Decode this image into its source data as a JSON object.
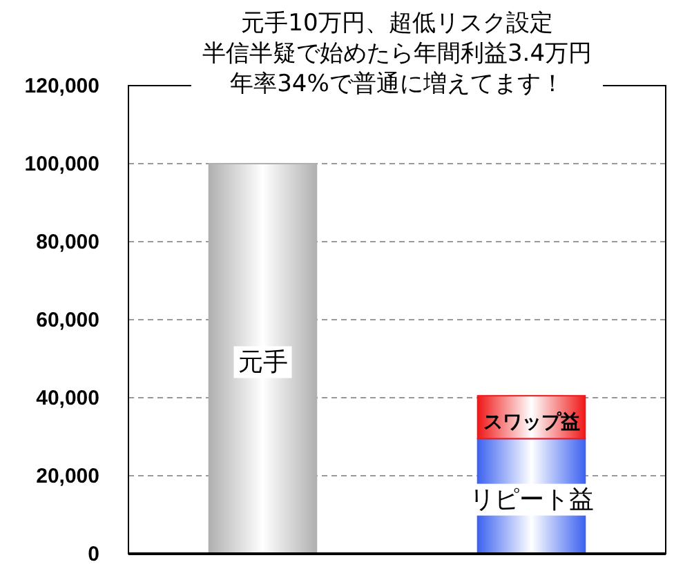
{
  "chart_data": {
    "type": "bar",
    "title": "元手10万円、超低リスク設定",
    "subtitle": "半信半疑で始めたら年間利益3.4万円",
    "annotations": [
      "年率34%で普通に増えてます！"
    ],
    "categories": [
      null,
      null
    ],
    "stacked": true,
    "series": [
      {
        "name": "元手",
        "color": "#b0b0b0",
        "values": [
          100000,
          null
        ]
      },
      {
        "name": "リピート益",
        "color": "#3d63f0",
        "values": [
          null,
          29500
        ]
      },
      {
        "name": "スワップ益",
        "color": "#f01818",
        "values": [
          null,
          11000
        ]
      }
    ],
    "ylim": [
      0,
      120000
    ],
    "yticks": [
      {
        "value": 0,
        "label": "0"
      },
      {
        "value": 20000,
        "label": "20,000"
      },
      {
        "value": 40000,
        "label": "40,000"
      },
      {
        "value": 60000,
        "label": "60,000"
      },
      {
        "value": 80000,
        "label": "80,000"
      },
      {
        "value": 100000,
        "label": "100,000"
      },
      {
        "value": 120000,
        "label": "120,000"
      }
    ],
    "grid": "y"
  }
}
